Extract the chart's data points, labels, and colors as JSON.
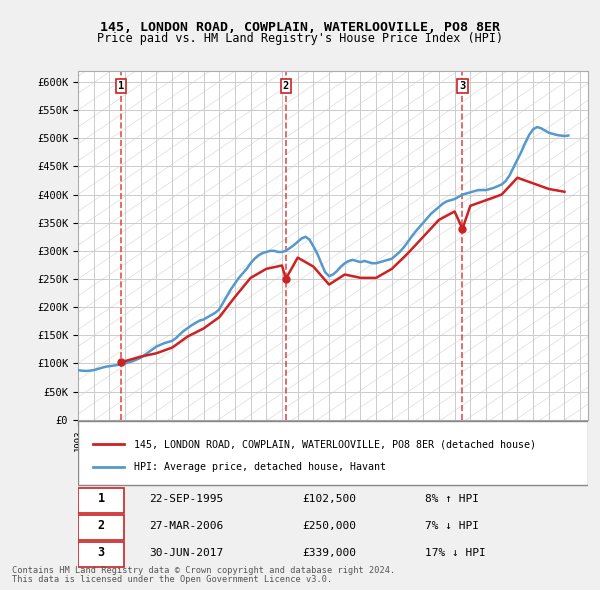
{
  "title": "145, LONDON ROAD, COWPLAIN, WATERLOOVILLE, PO8 8ER",
  "subtitle": "Price paid vs. HM Land Registry's House Price Index (HPI)",
  "ylim": [
    0,
    620000
  ],
  "yticks": [
    0,
    50000,
    100000,
    150000,
    200000,
    250000,
    300000,
    350000,
    400000,
    450000,
    500000,
    550000,
    600000
  ],
  "ytick_labels": [
    "£0",
    "£50K",
    "£100K",
    "£150K",
    "£200K",
    "£250K",
    "£300K",
    "£350K",
    "£400K",
    "£450K",
    "£500K",
    "£550K",
    "£600K"
  ],
  "background_color": "#f0f0f0",
  "plot_bg_color": "#ffffff",
  "hpi_color": "#5599cc",
  "price_color": "#cc2222",
  "sale_points": [
    {
      "year": 1995.73,
      "price": 102500,
      "label": "1"
    },
    {
      "year": 2006.24,
      "price": 250000,
      "label": "2"
    },
    {
      "year": 2017.5,
      "price": 339000,
      "label": "3"
    }
  ],
  "vline_color": "#dd3333",
  "legend_entries": [
    "145, LONDON ROAD, COWPLAIN, WATERLOOVILLE, PO8 8ER (detached house)",
    "HPI: Average price, detached house, Havant"
  ],
  "table_rows": [
    {
      "num": "1",
      "date": "22-SEP-1995",
      "price": "£102,500",
      "change": "8% ↑ HPI"
    },
    {
      "num": "2",
      "date": "27-MAR-2006",
      "price": "£250,000",
      "change": "7% ↓ HPI"
    },
    {
      "num": "3",
      "date": "30-JUN-2017",
      "price": "£339,000",
      "change": "17% ↓ HPI"
    }
  ],
  "footnote1": "Contains HM Land Registry data © Crown copyright and database right 2024.",
  "footnote2": "This data is licensed under the Open Government Licence v3.0.",
  "hpi_data": {
    "years": [
      1993.0,
      1993.25,
      1993.5,
      1993.75,
      1994.0,
      1994.25,
      1994.5,
      1994.75,
      1995.0,
      1995.25,
      1995.5,
      1995.75,
      1996.0,
      1996.25,
      1996.5,
      1996.75,
      1997.0,
      1997.25,
      1997.5,
      1997.75,
      1998.0,
      1998.25,
      1998.5,
      1998.75,
      1999.0,
      1999.25,
      1999.5,
      1999.75,
      2000.0,
      2000.25,
      2000.5,
      2000.75,
      2001.0,
      2001.25,
      2001.5,
      2001.75,
      2002.0,
      2002.25,
      2002.5,
      2002.75,
      2003.0,
      2003.25,
      2003.5,
      2003.75,
      2004.0,
      2004.25,
      2004.5,
      2004.75,
      2005.0,
      2005.25,
      2005.5,
      2005.75,
      2006.0,
      2006.25,
      2006.5,
      2006.75,
      2007.0,
      2007.25,
      2007.5,
      2007.75,
      2008.0,
      2008.25,
      2008.5,
      2008.75,
      2009.0,
      2009.25,
      2009.5,
      2009.75,
      2010.0,
      2010.25,
      2010.5,
      2010.75,
      2011.0,
      2011.25,
      2011.5,
      2011.75,
      2012.0,
      2012.25,
      2012.5,
      2012.75,
      2013.0,
      2013.25,
      2013.5,
      2013.75,
      2014.0,
      2014.25,
      2014.5,
      2014.75,
      2015.0,
      2015.25,
      2015.5,
      2015.75,
      2016.0,
      2016.25,
      2016.5,
      2016.75,
      2017.0,
      2017.25,
      2017.5,
      2017.75,
      2018.0,
      2018.25,
      2018.5,
      2018.75,
      2019.0,
      2019.25,
      2019.5,
      2019.75,
      2020.0,
      2020.25,
      2020.5,
      2020.75,
      2021.0,
      2021.25,
      2021.5,
      2021.75,
      2022.0,
      2022.25,
      2022.5,
      2022.75,
      2023.0,
      2023.25,
      2023.5,
      2023.75,
      2024.0,
      2024.25
    ],
    "values": [
      88000,
      87000,
      86500,
      87000,
      88000,
      90000,
      92000,
      94000,
      95000,
      96000,
      97000,
      99000,
      100000,
      102000,
      104000,
      107000,
      110000,
      115000,
      120000,
      125000,
      130000,
      133000,
      136000,
      138000,
      140000,
      145000,
      152000,
      158000,
      163000,
      168000,
      172000,
      176000,
      178000,
      182000,
      186000,
      190000,
      196000,
      208000,
      220000,
      232000,
      242000,
      252000,
      260000,
      268000,
      278000,
      286000,
      292000,
      296000,
      298000,
      300000,
      300000,
      298000,
      298000,
      300000,
      305000,
      310000,
      316000,
      322000,
      325000,
      320000,
      308000,
      295000,
      278000,
      262000,
      255000,
      258000,
      264000,
      272000,
      278000,
      282000,
      284000,
      282000,
      280000,
      282000,
      280000,
      278000,
      278000,
      280000,
      282000,
      284000,
      286000,
      292000,
      298000,
      306000,
      315000,
      325000,
      334000,
      342000,
      350000,
      358000,
      366000,
      372000,
      378000,
      384000,
      388000,
      390000,
      392000,
      396000,
      400000,
      402000,
      404000,
      406000,
      408000,
      408000,
      408000,
      410000,
      412000,
      415000,
      418000,
      424000,
      434000,
      448000,
      462000,
      476000,
      492000,
      506000,
      516000,
      520000,
      518000,
      514000,
      510000,
      508000,
      506000,
      505000,
      504000,
      505000
    ]
  },
  "price_line_data": {
    "years": [
      1995.73,
      1996.0,
      1997.0,
      1998.0,
      1999.0,
      2000.0,
      2001.0,
      2002.0,
      2003.0,
      2004.0,
      2005.0,
      2006.0,
      2006.24,
      2007.0,
      2008.0,
      2009.0,
      2010.0,
      2011.0,
      2011.5,
      2012.0,
      2013.0,
      2014.0,
      2015.0,
      2016.0,
      2017.0,
      2017.5,
      2018.0,
      2019.0,
      2020.0,
      2021.0,
      2022.0,
      2023.0,
      2024.0
    ],
    "values": [
      102500,
      104000,
      112000,
      118000,
      128000,
      148000,
      162000,
      182000,
      218000,
      252000,
      268000,
      274000,
      250000,
      288000,
      272000,
      240000,
      258000,
      252000,
      252000,
      252000,
      268000,
      295000,
      325000,
      355000,
      370000,
      339000,
      380000,
      390000,
      400000,
      430000,
      420000,
      410000,
      405000
    ]
  }
}
